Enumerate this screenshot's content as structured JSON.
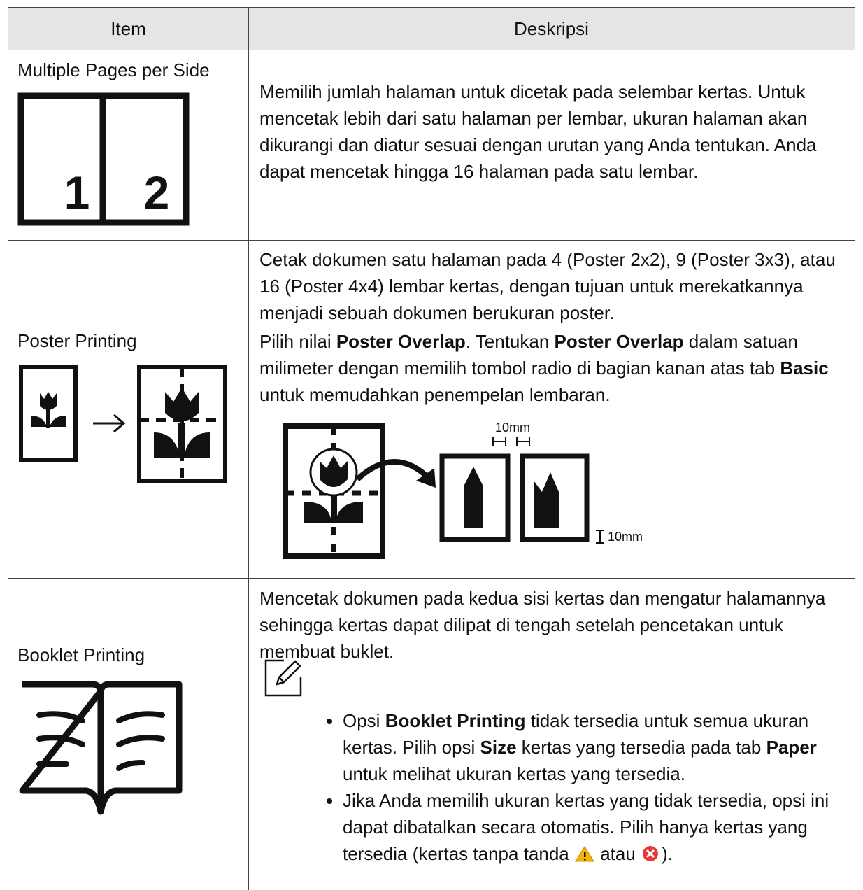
{
  "table": {
    "header": [
      "Item",
      "Deskripsi"
    ],
    "rows": [
      {
        "item": "Multiple Pages per Side",
        "icon_labels": [
          "1",
          "2"
        ],
        "description": [
          [
            "Memilih jumlah halaman untuk dicetak pada selembar kertas. Untuk mencetak lebih dari satu halaman per lembar, ukuran halaman akan dikurangi dan diatur sesuai dengan urutan yang Anda tentukan. Anda dapat mencetak hingga 16 halaman pada satu lembar."
          ]
        ]
      },
      {
        "item": "Poster Printing",
        "description": [
          [
            "Cetak dokumen satu halaman pada 4 (Poster 2x2), 9 (Poster 3x3), atau 16 (Poster 4x4) lembar kertas, dengan tujuan untuk merekatkannya menjadi sebuah dokumen berukuran poster."
          ],
          [
            "Pilih nilai ",
            "Poster Overlap",
            ". Tentukan ",
            "Poster Overlap",
            " dalam satuan milimeter dengan memilih tombol radio di bagian kanan atas tab ",
            "Basic",
            " untuk memudahkan penempelan lembaran."
          ]
        ],
        "diagram_labels": [
          "10mm",
          "10mm"
        ]
      },
      {
        "item": "Booklet Printing",
        "description": [
          [
            "Mencetak dokumen pada kedua sisi kertas dan mengatur halamannya sehingga kertas dapat dilipat di tengah setelah pencetakan untuk membuat buklet."
          ]
        ],
        "note": [
          [
            "Opsi ",
            "Booklet Printing",
            " tidak tersedia untuk semua ukuran kertas. Pilih opsi ",
            "Size",
            " kertas yang tersedia pada tab ",
            "Paper",
            " untuk melihat ukuran kertas yang tersedia."
          ],
          [
            "Jika Anda memilih ukuran kertas yang tidak tersedia, opsi ini dapat dibatalkan secara otomatis. Pilih hanya kertas yang tersedia (kertas tanpa tanda ",
            " atau ",
            ")."
          ]
        ]
      }
    ]
  }
}
